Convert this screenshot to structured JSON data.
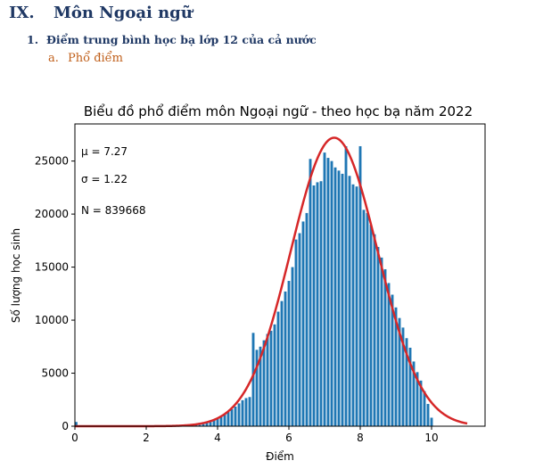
{
  "document": {
    "section_number": "IX.",
    "section_title": "Môn Ngoại ngữ",
    "subsection_number": "1.",
    "subsection_title": "Điểm trung bình học bạ lớp 12 của cả nước",
    "item_marker": "a.",
    "item_title": "Phổ điểm"
  },
  "chart_data": {
    "type": "bar",
    "title": "Biểu đồ phổ điểm môn Ngoại ngữ - theo học bạ năm 2022",
    "xlabel": "Điểm",
    "ylabel": "Số lượng học sinh",
    "xlim": [
      0,
      11.5
    ],
    "ylim": [
      0,
      28500
    ],
    "xticks": [
      0,
      2,
      4,
      6,
      8,
      10
    ],
    "yticks": [
      0,
      5000,
      10000,
      15000,
      20000,
      25000
    ],
    "annotations": [
      "μ = 7.27",
      "σ = 1.22",
      "N = 839668"
    ],
    "bars": {
      "x": [
        0,
        3.4,
        3.5,
        3.6,
        3.7,
        3.8,
        3.9,
        4.0,
        4.1,
        4.2,
        4.3,
        4.4,
        4.5,
        4.6,
        4.7,
        4.8,
        4.9,
        5.0,
        5.1,
        5.2,
        5.3,
        5.4,
        5.5,
        5.6,
        5.7,
        5.8,
        5.9,
        6.0,
        6.1,
        6.2,
        6.3,
        6.4,
        6.5,
        6.6,
        6.7,
        6.8,
        6.9,
        7.0,
        7.1,
        7.2,
        7.3,
        7.4,
        7.5,
        7.6,
        7.7,
        7.8,
        7.9,
        8.0,
        8.1,
        8.2,
        8.3,
        8.4,
        8.5,
        8.6,
        8.7,
        8.8,
        8.9,
        9.0,
        9.1,
        9.2,
        9.3,
        9.4,
        9.5,
        9.6,
        9.7,
        9.8,
        9.9,
        10.0
      ],
      "values": [
        400,
        80,
        120,
        200,
        300,
        400,
        550,
        700,
        900,
        1100,
        1350,
        1600,
        1850,
        2150,
        2450,
        2650,
        2750,
        8800,
        7200,
        7500,
        8100,
        8700,
        9000,
        9600,
        10800,
        11800,
        12700,
        13700,
        15000,
        17600,
        18200,
        19300,
        20100,
        25200,
        22700,
        23000,
        23100,
        25800,
        25300,
        25000,
        24400,
        24100,
        23800,
        26400,
        23600,
        22800,
        22600,
        26400,
        20400,
        20100,
        19000,
        18100,
        16900,
        15900,
        14800,
        13500,
        12400,
        11200,
        10200,
        9300,
        8300,
        7400,
        6100,
        5100,
        4300,
        3300,
        2100,
        800
      ]
    },
    "fit_curve": {
      "type": "normal",
      "mu": 7.27,
      "sigma": 1.22,
      "peak": 27200,
      "x_range": [
        0,
        11
      ],
      "color": "#d62728"
    },
    "bar_color": "#1f77b4"
  }
}
